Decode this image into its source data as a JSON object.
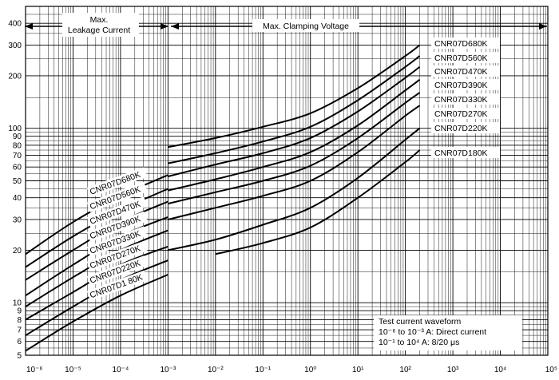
{
  "chart_data": {
    "type": "line",
    "title": "",
    "xlabel": "",
    "ylabel": "",
    "xscale": "log",
    "yscale": "log",
    "xlim": [
      1e-06,
      100000.0
    ],
    "ylim": [
      5,
      500
    ],
    "grid": true,
    "x_tick_labels": [
      "10⁻⁶",
      "10⁻⁵",
      "10⁻⁴",
      "10⁻³",
      "10⁻²",
      "10⁻¹",
      "10⁰",
      "10¹",
      "10²",
      "10³",
      "10⁴",
      "10⁵"
    ],
    "x_ticks": [
      1e-06,
      1e-05,
      0.0001,
      0.001,
      0.01,
      0.1,
      1,
      10,
      100,
      1000,
      10000,
      100000
    ],
    "y_ticks": [
      5,
      6,
      7,
      8,
      9,
      10,
      20,
      30,
      40,
      50,
      60,
      70,
      80,
      90,
      100,
      200,
      300,
      400
    ],
    "y_tick_labels": [
      "5",
      "6",
      "7",
      "8",
      "9",
      "10",
      "20",
      "30",
      "40",
      "50",
      "60",
      "70",
      "80",
      "90",
      "100",
      "200",
      "300",
      "400"
    ],
    "annotations": {
      "leakage": [
        "Max.",
        "Leakage Current"
      ],
      "clamping": "Max. Clamping Voltage",
      "waveform": [
        "Test current waveform",
        "10⁻⁶ to 10⁻³ A: Direct current",
        "10⁻¹ to 10⁴ A:  8/20 μs"
      ]
    },
    "series": [
      {
        "name": "CNR07D680K",
        "leakage": [
          [
            1e-06,
            19
          ],
          [
            1e-05,
            29
          ],
          [
            0.0001,
            41
          ],
          [
            0.001,
            54
          ]
        ],
        "clamping": [
          [
            0.001,
            78
          ],
          [
            0.01,
            88
          ],
          [
            0.1,
            102
          ],
          [
            1,
            122
          ],
          [
            10,
            170
          ],
          [
            100,
            260
          ],
          [
            200,
            300
          ]
        ]
      },
      {
        "name": "CNR07D560K",
        "leakage": [
          [
            1e-06,
            16
          ],
          [
            1e-05,
            24
          ],
          [
            0.0001,
            34
          ],
          [
            0.001,
            45
          ]
        ],
        "clamping": [
          [
            0.001,
            63
          ],
          [
            0.01,
            72
          ],
          [
            0.1,
            84
          ],
          [
            1,
            102
          ],
          [
            10,
            145
          ],
          [
            100,
            225
          ],
          [
            200,
            260
          ]
        ]
      },
      {
        "name": "CNR07D470K",
        "leakage": [
          [
            1e-06,
            13.5
          ],
          [
            1e-05,
            20
          ],
          [
            0.0001,
            29
          ],
          [
            0.001,
            38
          ]
        ],
        "clamping": [
          [
            0.001,
            53
          ],
          [
            0.01,
            62
          ],
          [
            0.1,
            72
          ],
          [
            1,
            88
          ],
          [
            10,
            125
          ],
          [
            100,
            195
          ],
          [
            200,
            225
          ]
        ]
      },
      {
        "name": "CNR07D390K",
        "leakage": [
          [
            1e-06,
            11
          ],
          [
            1e-05,
            16.5
          ],
          [
            0.0001,
            24
          ],
          [
            0.001,
            31
          ]
        ],
        "clamping": [
          [
            0.001,
            44
          ],
          [
            0.01,
            51
          ],
          [
            0.1,
            60
          ],
          [
            1,
            73
          ],
          [
            10,
            104
          ],
          [
            100,
            165
          ],
          [
            200,
            190
          ]
        ]
      },
      {
        "name": "CNR07D330K",
        "leakage": [
          [
            1e-06,
            9.5
          ],
          [
            1e-05,
            14
          ],
          [
            0.0001,
            20
          ],
          [
            0.001,
            26
          ]
        ],
        "clamping": [
          [
            0.001,
            37
          ],
          [
            0.01,
            43
          ],
          [
            0.1,
            50
          ],
          [
            1,
            61
          ],
          [
            10,
            88
          ],
          [
            100,
            140
          ],
          [
            200,
            160
          ]
        ]
      },
      {
        "name": "CNR07D270K",
        "leakage": [
          [
            1e-06,
            8
          ],
          [
            1e-05,
            11.5
          ],
          [
            0.0001,
            16.5
          ],
          [
            0.001,
            21
          ]
        ],
        "clamping": [
          [
            0.001,
            30
          ],
          [
            0.01,
            35
          ],
          [
            0.1,
            41
          ],
          [
            1,
            50
          ],
          [
            10,
            73
          ],
          [
            100,
            118
          ],
          [
            200,
            135
          ]
        ]
      },
      {
        "name": "CNR07D220K",
        "leakage": [
          [
            1e-06,
            6.5
          ],
          [
            1e-05,
            9.5
          ],
          [
            0.0001,
            13.5
          ],
          [
            0.001,
            17.5
          ]
        ],
        "clamping": [
          [
            0.001,
            20
          ],
          [
            0.01,
            23
          ],
          [
            0.1,
            28
          ],
          [
            1,
            35
          ],
          [
            10,
            52
          ],
          [
            100,
            86
          ],
          [
            200,
            100
          ]
        ]
      },
      {
        "name": "CNR07D1 80K",
        "leakage": [
          [
            1e-06,
            5.3
          ],
          [
            1e-05,
            7.8
          ],
          [
            0.0001,
            11
          ],
          [
            0.001,
            14.5
          ]
        ],
        "clamping": [
          [
            0.01,
            19
          ],
          [
            0.1,
            22
          ],
          [
            1,
            27
          ],
          [
            10,
            40
          ],
          [
            100,
            64
          ],
          [
            200,
            75
          ]
        ]
      }
    ],
    "right_labels": [
      "CNR07D680K",
      "CNR07D560K",
      "CNR07D470K",
      "CNR07D390K",
      "CNR07D330K",
      "CNR07D270K",
      "CNR07D220K",
      "CNR07D180K"
    ]
  }
}
